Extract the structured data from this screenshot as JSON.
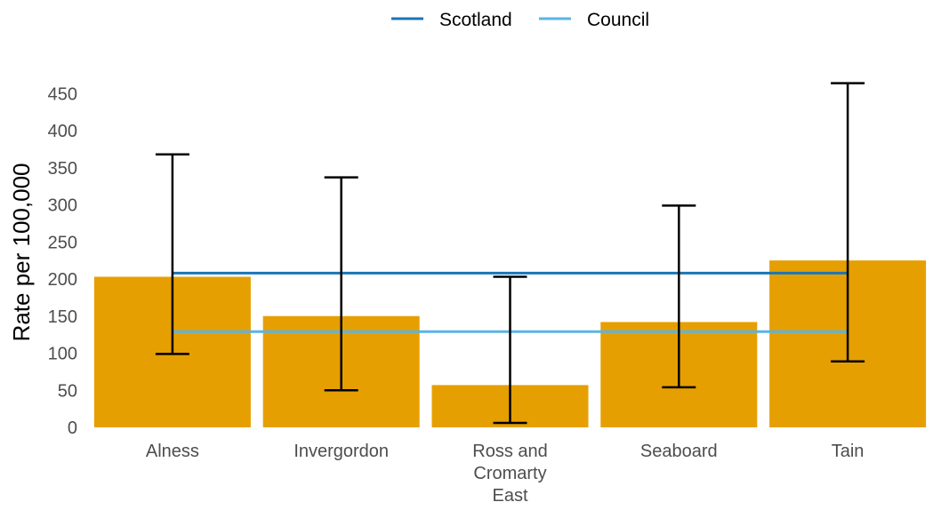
{
  "chart_data": {
    "type": "bar",
    "categories": [
      "Alness",
      "Invergordon",
      "Ross and Cromarty East",
      "Seaboard",
      "Tain"
    ],
    "category_label_lines": [
      [
        "Alness"
      ],
      [
        "Invergordon"
      ],
      [
        "Ross and",
        "Cromarty",
        "East"
      ],
      [
        "Seaboard"
      ],
      [
        "Tain"
      ]
    ],
    "values": [
      203,
      150,
      57,
      142,
      225
    ],
    "error_lower": [
      99,
      50,
      6,
      54,
      89
    ],
    "error_upper": [
      368,
      337,
      203,
      299,
      464
    ],
    "reference_lines": [
      {
        "name": "Scotland",
        "value": 208,
        "color": "#1b75b5"
      },
      {
        "name": "Council",
        "value": 129,
        "color": "#5ab4e5"
      }
    ],
    "title": "",
    "xlabel": "",
    "ylabel": "Rate per 100,000",
    "ylim": [
      0,
      470
    ],
    "yticks": [
      0,
      50,
      100,
      150,
      200,
      250,
      300,
      350,
      400,
      450
    ],
    "bar_color": "#e69f00",
    "errorbar_color": "#000000",
    "grid": false,
    "legend_position": "top"
  }
}
